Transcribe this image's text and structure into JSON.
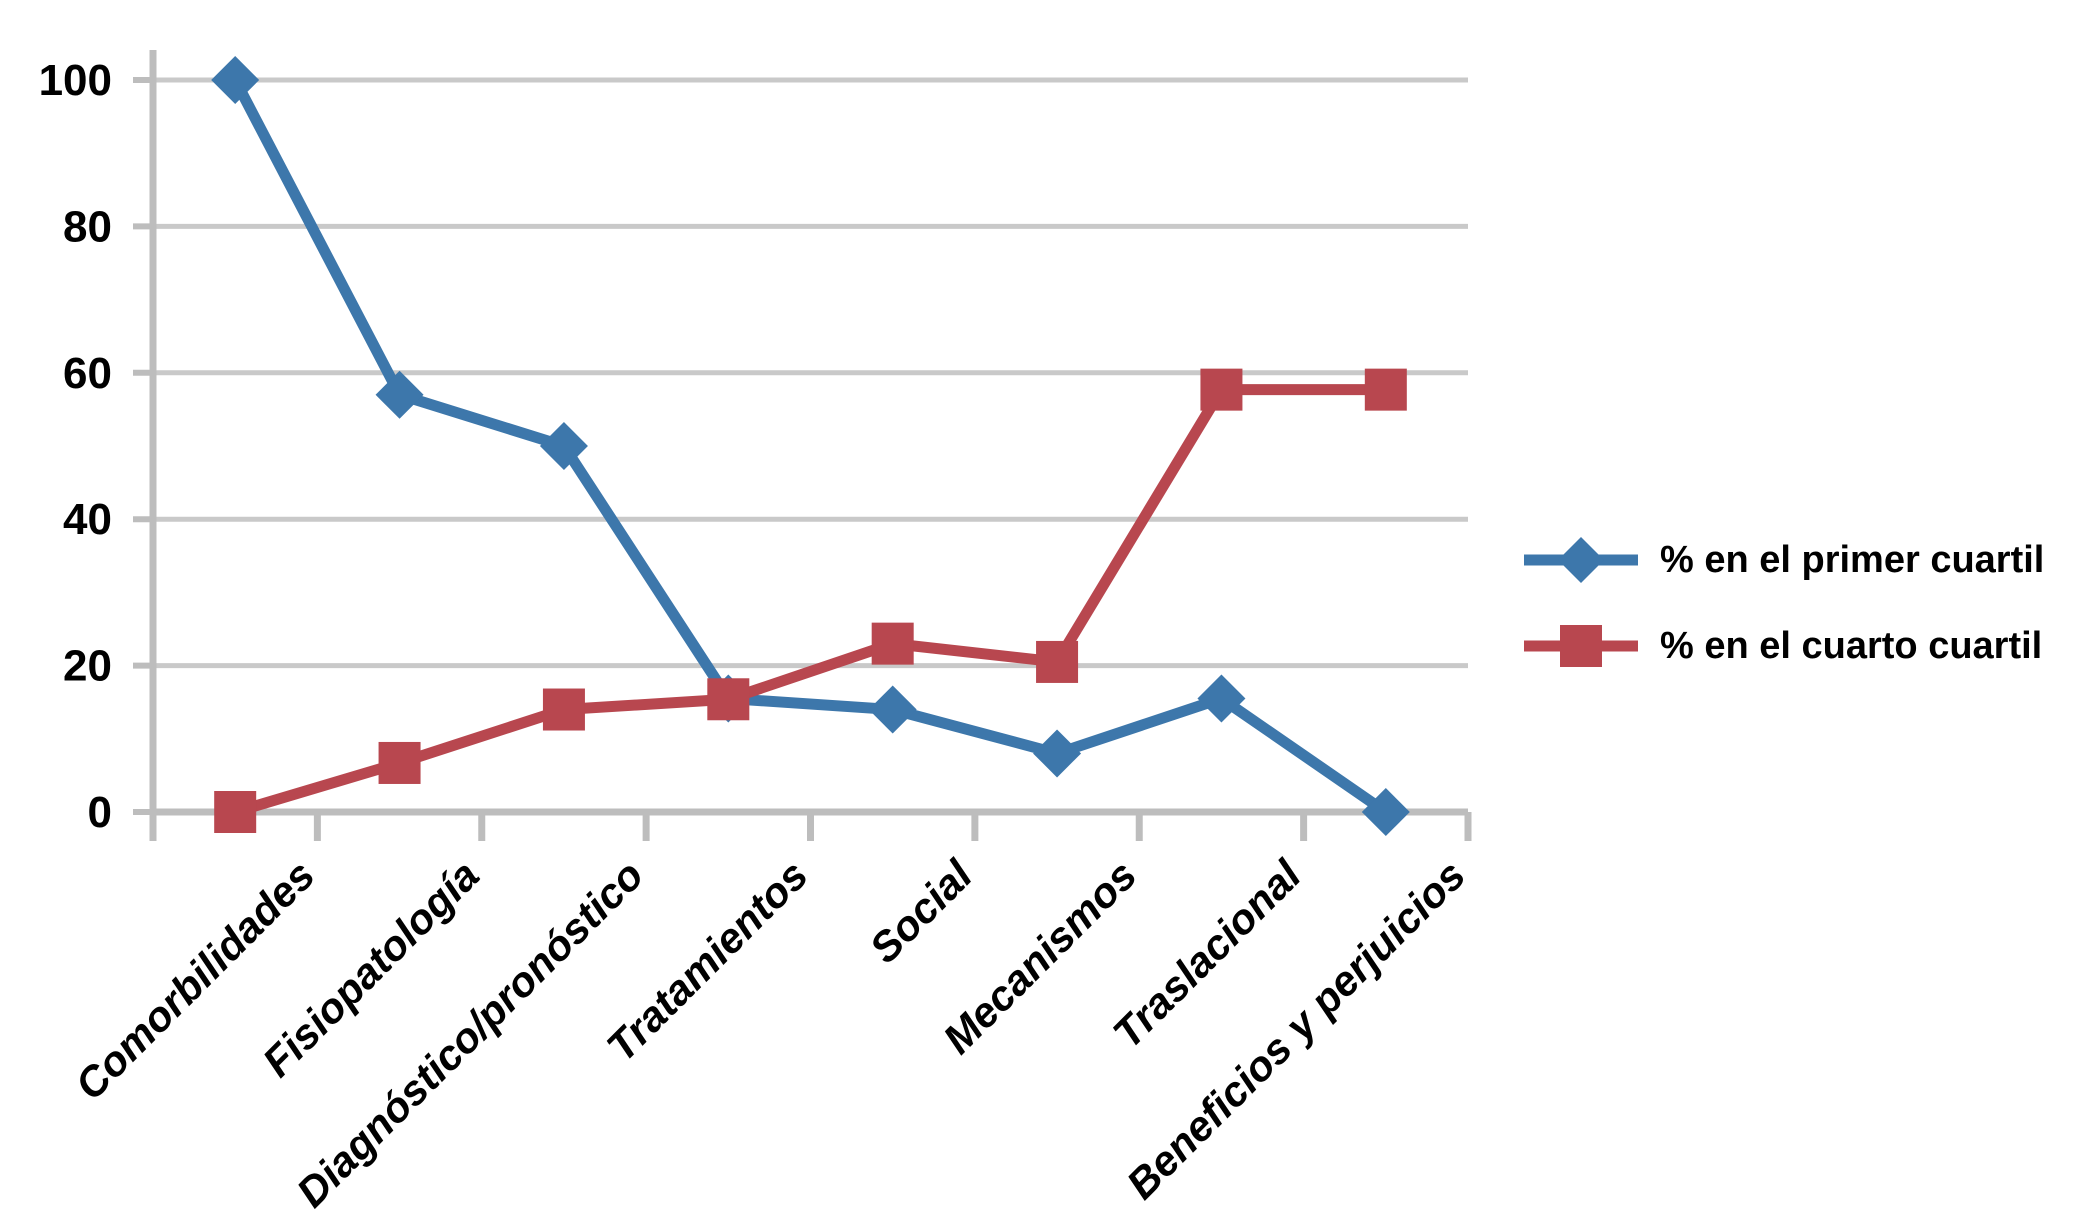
{
  "chart_data": {
    "type": "line",
    "title": "",
    "xlabel": "",
    "ylabel": "",
    "categories": [
      "Comorbilidades",
      "Fisiopatología",
      "Diagnóstico/pronóstico",
      "Tratamientos",
      "Social",
      "Mecanismos",
      "Traslacional",
      "Beneficios y perjuicios"
    ],
    "series": [
      {
        "name": "% en el primer cuartil",
        "marker": "diamond",
        "color": "#3D77AB",
        "values": [
          100,
          57,
          50,
          15.5,
          14,
          8,
          15.5,
          0
        ]
      },
      {
        "name": "% en el cuarto cuartil",
        "marker": "square",
        "color": "#B8474F",
        "values": [
          0,
          6.7,
          14,
          15.4,
          23,
          20.5,
          57.7,
          57.7
        ]
      }
    ],
    "yticks": [
      0,
      20,
      40,
      60,
      80,
      100
    ],
    "ylim": [
      0,
      105
    ],
    "grid": true,
    "legend_position": "right",
    "colors": {
      "gridline": "#C9C9C9",
      "axis": "#BDBDBD",
      "tick_label": "#000000",
      "background": "#FFFFFF"
    }
  }
}
